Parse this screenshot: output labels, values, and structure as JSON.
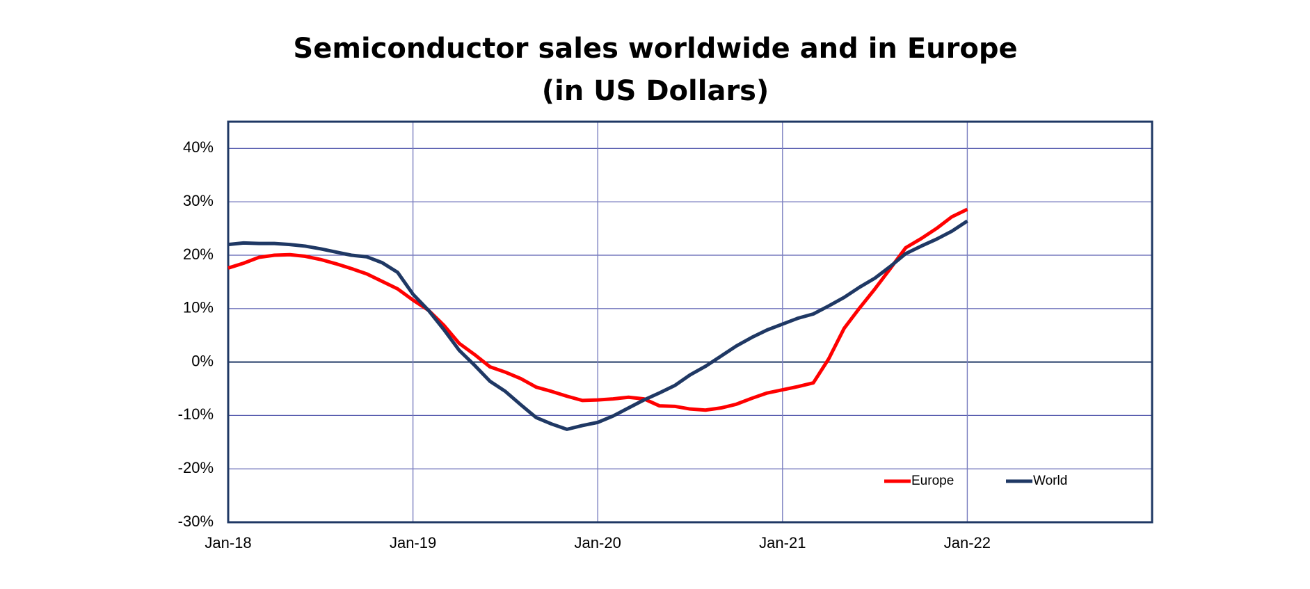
{
  "chart_data": {
    "type": "line",
    "title": "Semiconductor sales worldwide and in Europe",
    "subtitle": "(in US Dollars)",
    "x": [
      "2018-01",
      "2018-02",
      "2018-03",
      "2018-04",
      "2018-05",
      "2018-06",
      "2018-07",
      "2018-08",
      "2018-09",
      "2018-10",
      "2018-11",
      "2018-12",
      "2019-01",
      "2019-02",
      "2019-03",
      "2019-04",
      "2019-05",
      "2019-06",
      "2019-07",
      "2019-08",
      "2019-09",
      "2019-10",
      "2019-11",
      "2019-12",
      "2020-01",
      "2020-02",
      "2020-03",
      "2020-04",
      "2020-05",
      "2020-06",
      "2020-07",
      "2020-08",
      "2020-09",
      "2020-10",
      "2020-11",
      "2020-12",
      "2021-01",
      "2021-02",
      "2021-03",
      "2021-04",
      "2021-05",
      "2021-06",
      "2021-07",
      "2021-08",
      "2021-09",
      "2021-10",
      "2021-11",
      "2021-12",
      "2022-01"
    ],
    "series": [
      {
        "name": "Europe",
        "color": "#ff0000",
        "values": [
          17.6,
          18.5,
          19.6,
          20.0,
          20.1,
          19.8,
          19.2,
          18.4,
          17.5,
          16.5,
          15.1,
          13.7,
          11.6,
          9.7,
          6.9,
          3.5,
          1.4,
          -0.9,
          -1.9,
          -3.1,
          -4.7,
          -5.5,
          -6.4,
          -7.2,
          -7.1,
          -6.9,
          -6.6,
          -6.9,
          -8.2,
          -8.3,
          -8.8,
          -9.0,
          -8.6,
          -7.9,
          -6.8,
          -5.8,
          -5.2,
          -4.6,
          -3.9,
          0.6,
          6.3,
          10.1,
          13.7,
          17.5,
          21.4,
          23.1,
          25.0,
          27.2,
          28.6
        ]
      },
      {
        "name": "World",
        "color": "#1f3864",
        "values": [
          22.0,
          22.3,
          22.2,
          22.2,
          22.0,
          21.7,
          21.2,
          20.6,
          20.0,
          19.7,
          18.6,
          16.8,
          12.7,
          9.7,
          6.1,
          2.2,
          -0.6,
          -3.6,
          -5.5,
          -8.0,
          -10.4,
          -11.6,
          -12.6,
          -11.9,
          -11.3,
          -10.1,
          -8.6,
          -7.1,
          -5.8,
          -4.4,
          -2.4,
          -0.8,
          1.1,
          3.0,
          4.6,
          6.0,
          7.1,
          8.2,
          9.0,
          10.5,
          12.1,
          14.0,
          15.7,
          17.9,
          20.3,
          21.7,
          23.0,
          24.5,
          26.4
        ]
      }
    ],
    "xlim": [
      "2018-01",
      "2023-01"
    ],
    "xticks": [
      {
        "value": "2018-01",
        "label": "Jan-18"
      },
      {
        "value": "2019-01",
        "label": "Jan-19"
      },
      {
        "value": "2020-01",
        "label": "Jan-20"
      },
      {
        "value": "2021-01",
        "label": "Jan-21"
      },
      {
        "value": "2022-01",
        "label": "Jan-22"
      }
    ],
    "ylim": [
      -30,
      45
    ],
    "yticks": [
      {
        "value": -30,
        "label": "-30%"
      },
      {
        "value": -20,
        "label": "-20%"
      },
      {
        "value": -10,
        "label": "-10%"
      },
      {
        "value": 0,
        "label": "0%"
      },
      {
        "value": 10,
        "label": "10%"
      },
      {
        "value": 20,
        "label": "20%"
      },
      {
        "value": 30,
        "label": "30%"
      },
      {
        "value": 40,
        "label": "40%"
      }
    ],
    "grid": true,
    "legend": "lower right"
  }
}
